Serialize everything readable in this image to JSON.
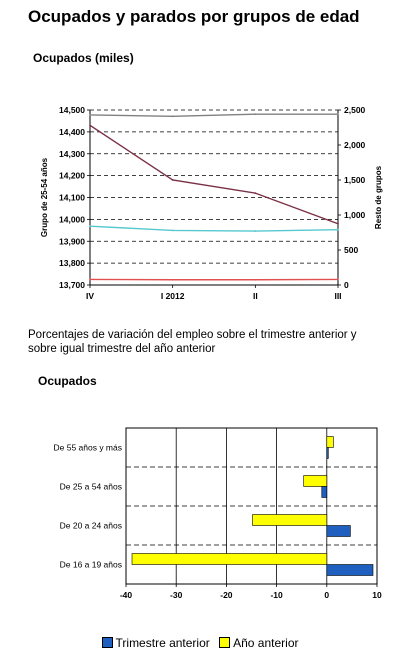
{
  "page": {
    "title": "Ocupados y parados por grupos de edad"
  },
  "chart1": {
    "title": "Ocupados (miles)"
  },
  "subtitle": "Porcentajes de variación del empleo sobre el trimestre anterior y sobre igual trimestre del año anterior",
  "chart2": {
    "title": "Ocupados"
  },
  "legend": {
    "items": [
      {
        "label": "Trimestre anterior",
        "color": "#1f5fbf"
      },
      {
        "label": "Año anterior",
        "color": "#ffff00"
      }
    ]
  },
  "chart_data": [
    {
      "type": "line",
      "title": "Ocupados (miles)",
      "categories": [
        "IV",
        "I 2012",
        "II",
        "III"
      ],
      "ylabel": "Grupo de 25-54 años",
      "y2label": "Resto de grupos",
      "ylim": [
        13700,
        14500
      ],
      "yticks": [
        "13,700",
        "13,800",
        "13,900",
        "14,000",
        "14,100",
        "14,200",
        "14,300",
        "14,400",
        "14,500"
      ],
      "y2lim": [
        0,
        2500
      ],
      "y2ticks": [
        "0",
        "500",
        "1,000",
        "1,500",
        "2,000",
        "2,500"
      ],
      "grid": "horizontal dashed",
      "series": [
        {
          "axis": "left",
          "color": "#7a3045",
          "values": [
            14430,
            14180,
            14120,
            13980
          ]
        },
        {
          "axis": "right",
          "color": "#808080",
          "values": [
            2430,
            2410,
            2440,
            2440
          ]
        },
        {
          "axis": "right",
          "color": "#55c8d0",
          "values": [
            840,
            780,
            770,
            790
          ]
        },
        {
          "axis": "right",
          "color": "#e05050",
          "values": [
            80,
            75,
            75,
            80
          ]
        }
      ]
    },
    {
      "type": "bar",
      "orientation": "horizontal",
      "title": "Ocupados",
      "categories": [
        "De 55 años y más",
        "De 25 a 54 años",
        "De 20 a 24 años",
        "De 16 a 19 años"
      ],
      "xlim": [
        -40,
        10
      ],
      "xticks": [
        "-40",
        "-30",
        "-20",
        "-10",
        "0",
        "10"
      ],
      "grid": "vertical solid, horizontal dashed separators",
      "legend": "bottom",
      "series": [
        {
          "name": "Trimestre anterior",
          "color": "#1f5fbf",
          "values": [
            0.3,
            -1.0,
            4.7,
            9.2
          ]
        },
        {
          "name": "Año anterior",
          "color": "#ffff00",
          "values": [
            1.3,
            -4.6,
            -14.8,
            -38.8
          ]
        }
      ]
    }
  ]
}
